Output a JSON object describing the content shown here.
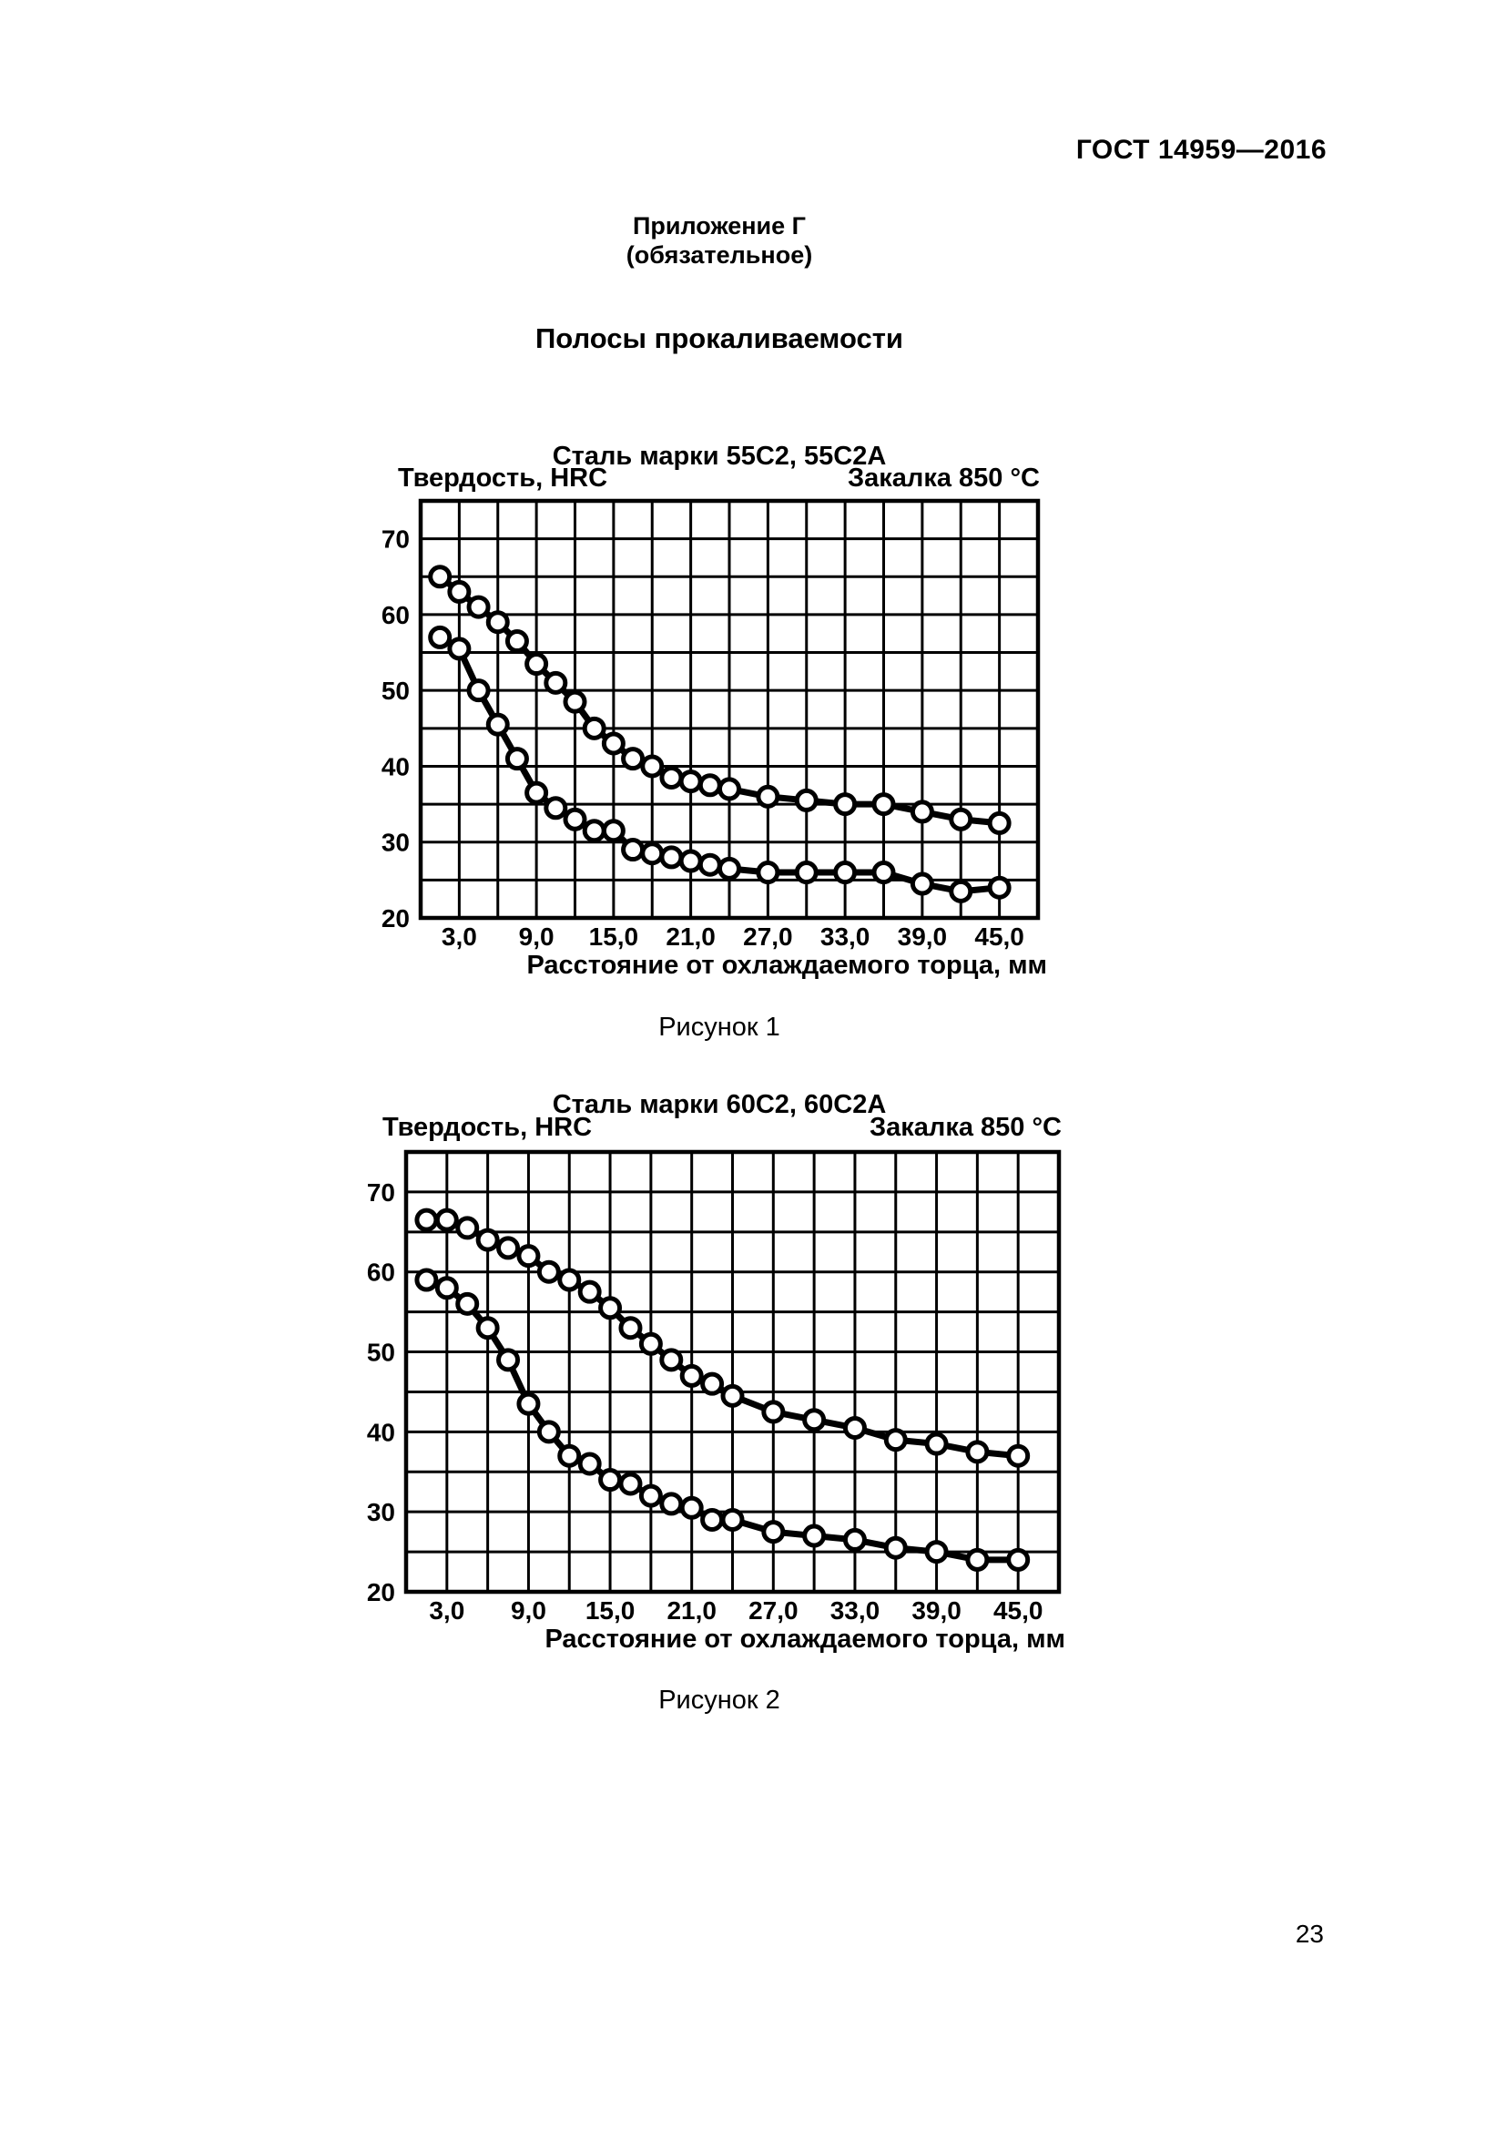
{
  "page": {
    "header": "ГОСТ 14959—2016",
    "appendix_title": "Приложение Г",
    "appendix_note": "(обязательное)",
    "section_title": "Полосы прокаливаемости",
    "page_number": "23"
  },
  "chart_data": [
    {
      "type": "line",
      "title": "Сталь марки 55С2, 55С2А",
      "ylabel": "Твердость, HRC",
      "annotation": "Закалка 850 °С",
      "xlabel": "Расстояние от охлаждаемого торца, мм",
      "caption": "Рисунок 1",
      "xlim": [
        0,
        48
      ],
      "ylim": [
        20,
        75
      ],
      "grid": true,
      "legend_position": "none",
      "x_grid_step": 3,
      "y_grid_step": 5,
      "x_ticks": [
        3,
        9,
        15,
        21,
        27,
        33,
        39,
        45
      ],
      "x_tick_labels": [
        "3,0",
        "9,0",
        "15,0",
        "21,0",
        "27,0",
        "33,0",
        "39,0",
        "45,0"
      ],
      "y_ticks": [
        20,
        30,
        40,
        50,
        60,
        70
      ],
      "x": [
        1.5,
        3,
        4.5,
        6,
        7.5,
        9,
        10.5,
        12,
        13.5,
        15,
        16.5,
        18,
        19.5,
        21,
        22.5,
        24,
        27,
        30,
        33,
        36,
        39,
        42,
        45
      ],
      "series": [
        {
          "name": "upper-band",
          "values": [
            65,
            63,
            61,
            59,
            56.5,
            53.5,
            51,
            48.5,
            45,
            43,
            41,
            40,
            38.5,
            38,
            37.5,
            37,
            36,
            35.5,
            35,
            35,
            34,
            33,
            32.5
          ]
        },
        {
          "name": "lower-band",
          "values": [
            57,
            55.5,
            50,
            45.5,
            41,
            36.5,
            34.5,
            33,
            31.5,
            31.5,
            29,
            28.5,
            28,
            27.5,
            27,
            26.5,
            26,
            26,
            26,
            26,
            24.5,
            23.5,
            24
          ]
        }
      ]
    },
    {
      "type": "line",
      "title": "Сталь марки 60С2, 60С2А",
      "ylabel": "Твердость, HRC",
      "annotation": "Закалка 850 °С",
      "xlabel": "Расстояние от охлаждаемого торца, мм",
      "caption": "Рисунок 2",
      "xlim": [
        0,
        48
      ],
      "ylim": [
        20,
        75
      ],
      "grid": true,
      "legend_position": "none",
      "x_grid_step": 3,
      "y_grid_step": 5,
      "x_ticks": [
        3,
        9,
        15,
        21,
        27,
        33,
        39,
        45
      ],
      "x_tick_labels": [
        "3,0",
        "9,0",
        "15,0",
        "21,0",
        "27,0",
        "33,0",
        "39,0",
        "45,0"
      ],
      "y_ticks": [
        20,
        30,
        40,
        50,
        60,
        70
      ],
      "x": [
        1.5,
        3,
        4.5,
        6,
        7.5,
        9,
        10.5,
        12,
        13.5,
        15,
        16.5,
        18,
        19.5,
        21,
        22.5,
        24,
        27,
        30,
        33,
        36,
        39,
        42,
        45
      ],
      "series": [
        {
          "name": "upper-band",
          "values": [
            66.5,
            66.5,
            65.5,
            64,
            63,
            62,
            60,
            59,
            57.5,
            55.5,
            53,
            51,
            49,
            47,
            46,
            44.5,
            42.5,
            41.5,
            40.5,
            39,
            38.5,
            37.5,
            37
          ]
        },
        {
          "name": "lower-band",
          "values": [
            59,
            58,
            56,
            53,
            49,
            43.5,
            40,
            37,
            36,
            34,
            33.5,
            32,
            31,
            30.5,
            29,
            29,
            27.5,
            27,
            26.5,
            25.5,
            25,
            24,
            24
          ]
        }
      ]
    }
  ]
}
